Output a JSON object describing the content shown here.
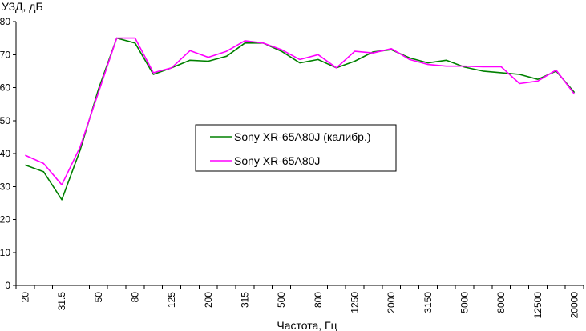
{
  "chart_data": {
    "type": "line",
    "title": "",
    "ylabel": "УЗД, дБ",
    "xlabel": "Частота, Гц",
    "ylim": [
      0,
      80
    ],
    "yticks": [
      0,
      10,
      20,
      30,
      40,
      50,
      60,
      70,
      80
    ],
    "grid": false,
    "legend_position": "center-left",
    "categories": [
      "20",
      "25",
      "31.5",
      "40",
      "50",
      "63",
      "80",
      "100",
      "125",
      "160",
      "200",
      "250",
      "315",
      "400",
      "500",
      "630",
      "800",
      "1000",
      "1250",
      "1600",
      "2000",
      "2500",
      "3150",
      "4000",
      "5000",
      "6300",
      "8000",
      "10000",
      "12500",
      "16000",
      "20000"
    ],
    "tick_labels": [
      "20",
      "31.5",
      "50",
      "80",
      "125",
      "200",
      "315",
      "500",
      "800",
      "1250",
      "2000",
      "3150",
      "5000",
      "8000",
      "12500",
      "20000"
    ],
    "series": [
      {
        "name": "Sony XR-65A80J (калибр.)",
        "color": "#008000",
        "values": [
          36.5,
          34.5,
          26,
          41,
          59.5,
          75,
          73.5,
          64,
          66,
          68.3,
          68,
          69.5,
          73.5,
          73.5,
          71,
          67.5,
          68.5,
          66,
          68,
          70.8,
          71.5,
          69,
          67.5,
          68.3,
          66.2,
          65,
          64.5,
          64,
          62.5,
          65,
          58.5
        ]
      },
      {
        "name": "Sony XR-65A80J",
        "color": "#ff00ff",
        "values": [
          39.5,
          37,
          30.5,
          42,
          58.5,
          75,
          75,
          64.5,
          66,
          71.2,
          69.2,
          71,
          74.2,
          73.5,
          71.5,
          68.5,
          70,
          66,
          71,
          70.5,
          71.8,
          68.5,
          67,
          66.5,
          66.5,
          66.3,
          66.3,
          61.2,
          62,
          65.3,
          58
        ]
      }
    ]
  }
}
